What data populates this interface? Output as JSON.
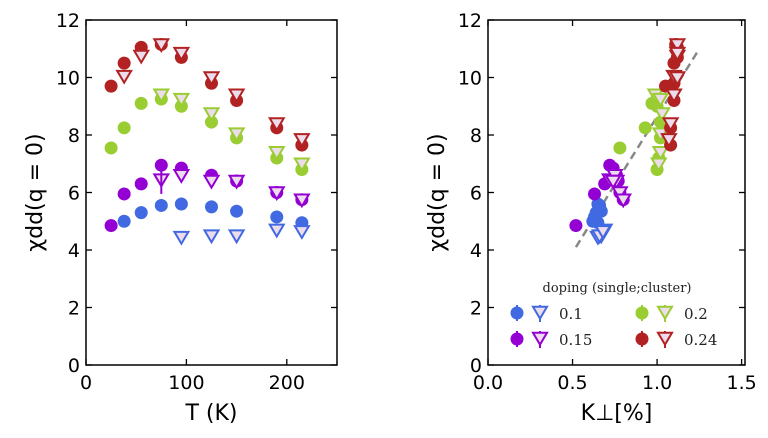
{
  "chart_data": [
    {
      "type": "scatter",
      "xlabel": "T (K)",
      "ylabel": "χdd(q = 0)",
      "xlim": [
        0,
        250
      ],
      "ylim": [
        0,
        12
      ],
      "xticks": [
        0,
        100,
        200
      ],
      "yticks": [
        0,
        2,
        4,
        6,
        8,
        10,
        12
      ],
      "grid": false,
      "series": [
        {
          "doping": "0.1",
          "kind": "single",
          "color": "#4169e1",
          "x": [
            38,
            55,
            75,
            95,
            125,
            150,
            190,
            215
          ],
          "y": [
            5.0,
            5.3,
            5.55,
            5.6,
            5.5,
            5.35,
            5.15,
            4.95
          ]
        },
        {
          "doping": "0.1",
          "kind": "cluster",
          "color": "#4169e1",
          "x": [
            95,
            125,
            150,
            190,
            215
          ],
          "y": [
            4.45,
            4.5,
            4.5,
            4.7,
            4.65
          ]
        },
        {
          "doping": "0.15",
          "kind": "single",
          "color": "#9400d3",
          "x": [
            25,
            38,
            55,
            75,
            95,
            125,
            150,
            190,
            215
          ],
          "y": [
            4.85,
            5.95,
            6.3,
            6.95,
            6.85,
            6.6,
            6.4,
            6.0,
            5.75
          ]
        },
        {
          "doping": "0.15",
          "kind": "cluster",
          "color": "#9400d3",
          "x": [
            75,
            95,
            125,
            150,
            190,
            215
          ],
          "y": [
            6.45,
            6.6,
            6.4,
            6.4,
            6.0,
            5.75
          ]
        },
        {
          "doping": "0.2",
          "kind": "single",
          "color": "#9acd32",
          "x": [
            25,
            38,
            55,
            75,
            95,
            125,
            150,
            190,
            215
          ],
          "y": [
            7.55,
            8.25,
            9.1,
            9.25,
            9.0,
            8.45,
            7.9,
            7.2,
            6.8
          ]
        },
        {
          "doping": "0.2",
          "kind": "cluster",
          "color": "#9acd32",
          "x": [
            75,
            95,
            125,
            150,
            190,
            215
          ],
          "y": [
            9.4,
            9.25,
            8.75,
            8.05,
            7.4,
            7.0
          ]
        },
        {
          "doping": "0.24",
          "kind": "single",
          "color": "#b22222",
          "x": [
            25,
            38,
            55,
            75,
            95,
            125,
            150,
            190,
            215
          ],
          "y": [
            9.7,
            10.5,
            11.05,
            11.15,
            10.7,
            9.8,
            9.2,
            8.25,
            7.65
          ]
        },
        {
          "doping": "0.24",
          "kind": "cluster",
          "color": "#b22222",
          "x": [
            38,
            55,
            75,
            95,
            125,
            150,
            190,
            215
          ],
          "y": [
            10.05,
            10.75,
            11.15,
            10.85,
            10.0,
            9.4,
            8.4,
            7.85
          ]
        }
      ]
    },
    {
      "type": "scatter",
      "xlabel": "K⊥[%]",
      "ylabel": "χdd(q = 0)",
      "xlim": [
        0,
        1.52
      ],
      "ylim": [
        0,
        12
      ],
      "xticks": [
        "0.0",
        "0.5",
        "1.0",
        "1.5"
      ],
      "yticks": [
        0,
        2,
        4,
        6,
        8,
        10,
        12
      ],
      "grid": false,
      "fit_line": {
        "style": "dashed",
        "color": "#888888",
        "x": [
          0.52,
          1.25
        ],
        "y": [
          4.1,
          11.0
        ]
      },
      "legend": {
        "title": "doping (single;cluster)",
        "placement": "lower-center",
        "entries": [
          "0.1",
          "0.15",
          "0.2",
          "0.24"
        ]
      },
      "series": [
        {
          "doping": "0.1",
          "kind": "single",
          "color": "#4169e1",
          "x": [
            0.62,
            0.64,
            0.66,
            0.65,
            0.66,
            0.67,
            0.63,
            0.65
          ],
          "y": [
            5.0,
            5.3,
            5.55,
            5.6,
            5.5,
            5.35,
            5.15,
            4.95
          ]
        },
        {
          "doping": "0.1",
          "kind": "cluster",
          "color": "#4169e1",
          "x": [
            0.65,
            0.67,
            0.66,
            0.69,
            0.68
          ],
          "y": [
            4.45,
            4.5,
            4.5,
            4.7,
            4.65
          ]
        },
        {
          "doping": "0.15",
          "kind": "single",
          "color": "#9400d3",
          "x": [
            0.52,
            0.63,
            0.69,
            0.72,
            0.74,
            0.76,
            0.77,
            0.78,
            0.8
          ],
          "y": [
            4.85,
            5.95,
            6.3,
            6.95,
            6.85,
            6.6,
            6.4,
            6.0,
            5.75
          ]
        },
        {
          "doping": "0.15",
          "kind": "cluster",
          "color": "#9400d3",
          "x": [
            0.72,
            0.75,
            0.76,
            0.74,
            0.78,
            0.8
          ],
          "y": [
            6.45,
            6.6,
            6.4,
            6.4,
            6.0,
            5.75
          ]
        },
        {
          "doping": "0.2",
          "kind": "single",
          "color": "#9acd32",
          "x": [
            0.78,
            0.93,
            0.97,
            1.0,
            1.0,
            1.02,
            1.02,
            1.01,
            1.0
          ],
          "y": [
            7.55,
            8.25,
            9.1,
            9.25,
            9.0,
            8.45,
            7.9,
            7.2,
            6.8
          ]
        },
        {
          "doping": "0.2",
          "kind": "cluster",
          "color": "#9acd32",
          "x": [
            0.99,
            1.02,
            1.03,
            1.02,
            1.02,
            1.01
          ],
          "y": [
            9.4,
            9.25,
            8.75,
            8.05,
            7.4,
            7.0
          ]
        },
        {
          "doping": "0.24",
          "kind": "single",
          "color": "#b22222",
          "x": [
            1.05,
            1.1,
            1.12,
            1.11,
            1.12,
            1.1,
            1.1,
            1.08,
            1.08
          ],
          "y": [
            9.7,
            10.5,
            11.05,
            11.15,
            10.7,
            9.8,
            9.2,
            8.25,
            7.65
          ]
        },
        {
          "doping": "0.24",
          "kind": "cluster",
          "color": "#b22222",
          "x": [
            1.1,
            1.12,
            1.12,
            1.12,
            1.12,
            1.1,
            1.08,
            1.07
          ],
          "y": [
            10.05,
            10.75,
            11.15,
            10.85,
            10.0,
            9.4,
            8.4,
            7.85
          ]
        }
      ]
    }
  ]
}
